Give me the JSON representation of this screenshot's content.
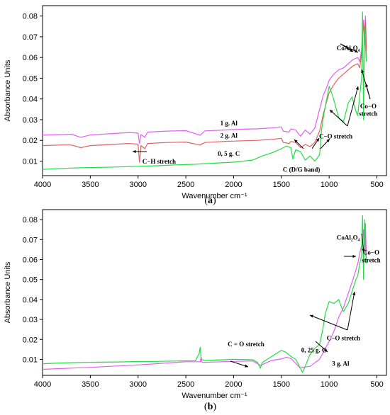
{
  "colors": {
    "magenta": "#e060f0",
    "red": "#e06060",
    "green": "#22dd44",
    "black": "#000000"
  },
  "chart_data": [
    {
      "type": "line",
      "panel_label_pre": "(",
      "panel_label_letter": "a",
      "panel_label_post": ")",
      "xlabel": "Wavenumber cm⁻¹",
      "ylabel": "Absorbance Units",
      "xlim": [
        4000,
        400
      ],
      "ylim": [
        0.003,
        0.085
      ],
      "x_ticks": [
        4000,
        3500,
        3000,
        2500,
        2000,
        1500,
        1000,
        500
      ],
      "y_ticks": [
        0.01,
        0.02,
        0.03,
        0.04,
        0.05,
        0.06,
        0.07,
        0.08
      ],
      "series": [
        {
          "name": "1 g. Al",
          "color": "#e060f0",
          "x": [
            4000,
            3800,
            3700,
            3600,
            3500,
            3300,
            3100,
            3000,
            2985,
            2970,
            2930,
            2900,
            2700,
            2500,
            2350,
            2300,
            2100,
            1900,
            1750,
            1600,
            1500,
            1480,
            1420,
            1400,
            1350,
            1300,
            1250,
            1200,
            1150,
            1100,
            1060,
            1030,
            1000,
            950,
            900,
            850,
            800,
            750,
            700,
            680,
            660,
            650,
            640,
            630,
            620,
            610
          ],
          "y": [
            0.0225,
            0.0228,
            0.023,
            0.0215,
            0.0226,
            0.0232,
            0.0238,
            0.0235,
            0.0185,
            0.0228,
            0.0215,
            0.024,
            0.0245,
            0.0247,
            0.0225,
            0.0246,
            0.025,
            0.0254,
            0.0256,
            0.026,
            0.0265,
            0.0245,
            0.024,
            0.0255,
            0.025,
            0.022,
            0.025,
            0.023,
            0.026,
            0.035,
            0.042,
            0.045,
            0.049,
            0.052,
            0.054,
            0.055,
            0.057,
            0.059,
            0.06,
            0.058,
            0.064,
            0.074,
            0.078,
            0.07,
            0.08,
            0.065
          ]
        },
        {
          "name": "2 g. Al",
          "color": "#e06060",
          "x": [
            4000,
            3800,
            3700,
            3600,
            3500,
            3300,
            3100,
            3000,
            2985,
            2970,
            2930,
            2900,
            2700,
            2500,
            2350,
            2300,
            2100,
            1900,
            1750,
            1600,
            1500,
            1480,
            1420,
            1400,
            1350,
            1300,
            1250,
            1200,
            1150,
            1100,
            1060,
            1030,
            1000,
            950,
            900,
            850,
            800,
            750,
            700,
            680,
            660,
            650,
            640,
            630,
            620,
            610
          ],
          "y": [
            0.0175,
            0.0178,
            0.0178,
            0.0165,
            0.0175,
            0.018,
            0.0185,
            0.0182,
            0.0095,
            0.0175,
            0.016,
            0.0185,
            0.019,
            0.0192,
            0.0178,
            0.019,
            0.0195,
            0.0198,
            0.02,
            0.0205,
            0.021,
            0.019,
            0.0185,
            0.0195,
            0.019,
            0.0165,
            0.018,
            0.017,
            0.019,
            0.0245,
            0.033,
            0.038,
            0.043,
            0.047,
            0.05,
            0.052,
            0.054,
            0.056,
            0.057,
            0.055,
            0.062,
            0.072,
            0.076,
            0.066,
            0.078,
            0.06
          ]
        },
        {
          "name": "0, 5 g.  C",
          "color": "#22dd44",
          "x": [
            4000,
            3800,
            3600,
            3400,
            3200,
            3000,
            2800,
            2600,
            2400,
            2200,
            2000,
            1800,
            1700,
            1600,
            1500,
            1450,
            1400,
            1380,
            1350,
            1300,
            1250,
            1200,
            1150,
            1100,
            1080,
            1050,
            1000,
            960,
            930,
            900,
            850,
            800,
            760,
            720,
            700,
            680,
            660,
            650,
            640,
            630,
            620,
            610
          ],
          "y": [
            0.006,
            0.0065,
            0.0068,
            0.007,
            0.0072,
            0.0075,
            0.0078,
            0.0082,
            0.0085,
            0.009,
            0.0095,
            0.0105,
            0.0125,
            0.014,
            0.016,
            0.0172,
            0.0165,
            0.011,
            0.0155,
            0.0145,
            0.0105,
            0.0125,
            0.01,
            0.013,
            0.025,
            0.034,
            0.046,
            0.041,
            0.036,
            0.031,
            0.029,
            0.038,
            0.041,
            0.034,
            0.032,
            0.042,
            0.05,
            0.082,
            0.03,
            0.075,
            0.065,
            0.058
          ]
        }
      ],
      "annotations": [
        {
          "text": "1  g. Al",
          "x": 2050,
          "y": 0.0273
        },
        {
          "text": "2  g. Al",
          "x": 2050,
          "y": 0.0212
        },
        {
          "text": "0, 5 g.  C",
          "x": 2050,
          "y": 0.0125
        },
        {
          "text": "C−H stretch",
          "x": 2780,
          "y": 0.0088
        },
        {
          "text": "C (D/G band)",
          "x": 1290,
          "y": 0.0048
        },
        {
          "text": "CoAl₂O₄",
          "x": 800,
          "y": 0.0635
        },
        {
          "text": "Co−O",
          "x": 590,
          "y": 0.0355
        },
        {
          "text": "stretch",
          "x": 590,
          "y": 0.0318
        },
        {
          "text": "C−O stretch",
          "x": 930,
          "y": 0.021
        }
      ]
    },
    {
      "type": "line",
      "panel_label_pre": "(",
      "panel_label_letter": "b",
      "panel_label_post": ")",
      "xlabel": "Wavenumber cm⁻¹",
      "ylabel": "Absorbance Units",
      "xlim": [
        4000,
        400
      ],
      "ylim": [
        0.002,
        0.085
      ],
      "x_ticks": [
        4000,
        3500,
        3000,
        2500,
        2000,
        1500,
        1000,
        500
      ],
      "y_ticks": [
        0.01,
        0.02,
        0.03,
        0.04,
        0.05,
        0.06,
        0.07,
        0.08
      ],
      "series": [
        {
          "name": "3 g. Al",
          "color": "#e060f0",
          "x": [
            4000,
            3500,
            3000,
            2500,
            2350,
            2340,
            2330,
            2000,
            1800,
            1720,
            1600,
            1500,
            1450,
            1400,
            1300,
            1280,
            1200,
            1100,
            1000,
            950,
            900,
            850,
            800,
            750,
            700,
            680,
            660,
            650,
            640,
            630,
            620,
            610
          ],
          "y": [
            0.005,
            0.006,
            0.0072,
            0.0088,
            0.0088,
            0.0112,
            0.0085,
            0.009,
            0.0092,
            0.007,
            0.0095,
            0.0102,
            0.011,
            0.0105,
            0.0055,
            0.006,
            0.0065,
            0.01,
            0.019,
            0.024,
            0.031,
            0.036,
            0.043,
            0.05,
            0.058,
            0.063,
            0.067,
            0.07,
            0.075,
            0.066,
            0.078,
            0.06
          ]
        },
        {
          "name": "0, 25 g. C",
          "color": "#22dd44",
          "x": [
            4000,
            3800,
            3600,
            3400,
            3200,
            3000,
            2800,
            2600,
            2400,
            2360,
            2350,
            2340,
            2300,
            2100,
            2000,
            1800,
            1750,
            1720,
            1700,
            1600,
            1500,
            1450,
            1400,
            1350,
            1300,
            1280,
            1250,
            1200,
            1150,
            1100,
            1070,
            1040,
            1000,
            950,
            900,
            870,
            850,
            800,
            760,
            720,
            700,
            680,
            660,
            650,
            640,
            630,
            620,
            610
          ],
          "y": [
            0.0078,
            0.0082,
            0.0085,
            0.0086,
            0.0087,
            0.0089,
            0.009,
            0.0092,
            0.0093,
            0.013,
            0.016,
            0.01,
            0.0095,
            0.0098,
            0.01,
            0.0098,
            0.0085,
            0.0055,
            0.0085,
            0.0115,
            0.0145,
            0.0135,
            0.0115,
            0.01,
            0.0055,
            0.0035,
            0.0065,
            0.0125,
            0.0155,
            0.0175,
            0.024,
            0.033,
            0.039,
            0.038,
            0.04,
            0.036,
            0.034,
            0.038,
            0.044,
            0.05,
            0.052,
            0.058,
            0.062,
            0.082,
            0.05,
            0.08,
            0.065,
            0.058
          ]
        }
      ],
      "annotations": [
        {
          "text": "C = O stretch",
          "x": 1870,
          "y": 0.0165
        },
        {
          "text": "0, 25 g. C",
          "x": 1160,
          "y": 0.0135
        },
        {
          "text": "3 g. Al",
          "x": 880,
          "y": 0.0068
        },
        {
          "text": "CoAl₂O₄",
          "x": 800,
          "y": 0.07
        },
        {
          "text": "Co−O",
          "x": 560,
          "y": 0.0625
        },
        {
          "text": "stretch",
          "x": 560,
          "y": 0.0585
        },
        {
          "text": "C−O stretch",
          "x": 850,
          "y": 0.0195
        }
      ]
    }
  ]
}
